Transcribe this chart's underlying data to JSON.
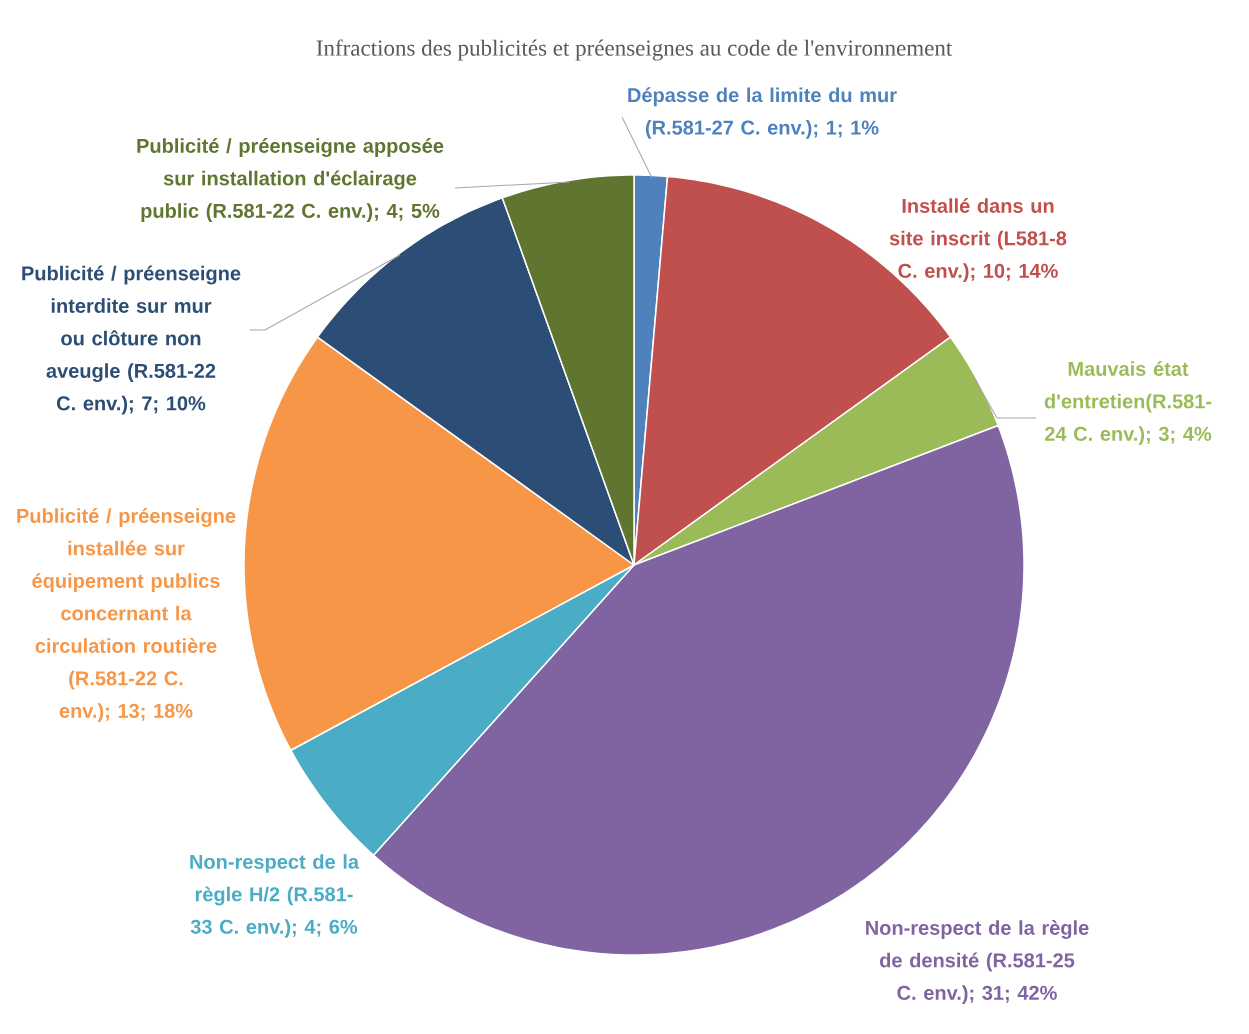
{
  "chart_data": {
    "type": "pie",
    "title": "Infractions des publicités et préenseignes au code de l'environnement",
    "categories": [
      "Dépasse de la limite du mur (R.581-27 C. env.)",
      "Installé dans un site inscrit (L581-8 C. env.)",
      "Mauvais état d'entretien(R.581-24 C. env.)",
      "Non-respect de la règle de densité (R.581-25 C. env.)",
      "Non-respect de la règle H/2 (R.581-33 C. env.)",
      "Publicité / préenseigne installée sur équipement publics concernant la circulation routière (R.581-22 C. env.)",
      "Publicité / préenseigne interdite sur mur ou clôture non aveugle (R.581-22 C. env.)",
      "Publicité / préenseigne apposée sur installation d'éclairage public (R.581-22 C. env.)"
    ],
    "values": [
      1,
      10,
      3,
      31,
      4,
      13,
      7,
      4
    ],
    "colors": [
      "#4f81bd",
      "#c0504d",
      "#9bbb59",
      "#8064a2",
      "#4bacc6",
      "#f79646",
      "#2c4d75",
      "#5f7530"
    ],
    "value_labels": [
      "; 1; 1%",
      "; 10; 14%",
      "; 3; 4%",
      "; 31; 42%",
      "; 4; 6%",
      "; 13; 18%",
      "; 7; 10%",
      "; 4; 5%"
    ]
  }
}
